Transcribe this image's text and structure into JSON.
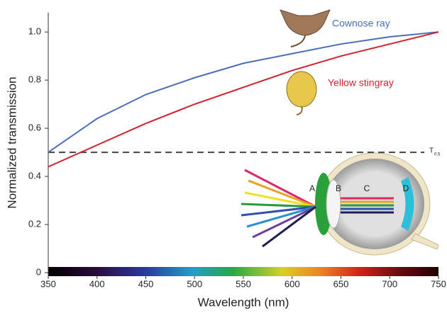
{
  "chart_data": {
    "type": "line",
    "x_label": "Wavelength (nm)",
    "y_label": "Normalized transmission",
    "x": [
      350,
      400,
      450,
      500,
      550,
      600,
      650,
      700,
      750
    ],
    "series": [
      {
        "name": "Cownose ray",
        "color": "#4a6fb8",
        "values": [
          0.5,
          0.64,
          0.74,
          0.81,
          0.87,
          0.91,
          0.95,
          0.98,
          1.0
        ]
      },
      {
        "name": "Yellow stingray",
        "color": "#d0222e",
        "values": [
          0.44,
          0.53,
          0.62,
          0.7,
          0.77,
          0.84,
          0.9,
          0.95,
          1.0
        ]
      }
    ],
    "xlim": [
      350,
      750
    ],
    "xticks": [
      350,
      400,
      450,
      500,
      550,
      600,
      650,
      700,
      750
    ],
    "ylim": [
      0,
      1.08
    ],
    "yticks": [
      0,
      0.2,
      0.4,
      0.6,
      0.8,
      {
        "value": 1,
        "label": "1.0"
      }
    ],
    "threshold": {
      "value": 0.5,
      "label": "T",
      "subscript": "0.5"
    },
    "diagram_labels": [
      "A",
      "B",
      "C",
      "D"
    ]
  }
}
